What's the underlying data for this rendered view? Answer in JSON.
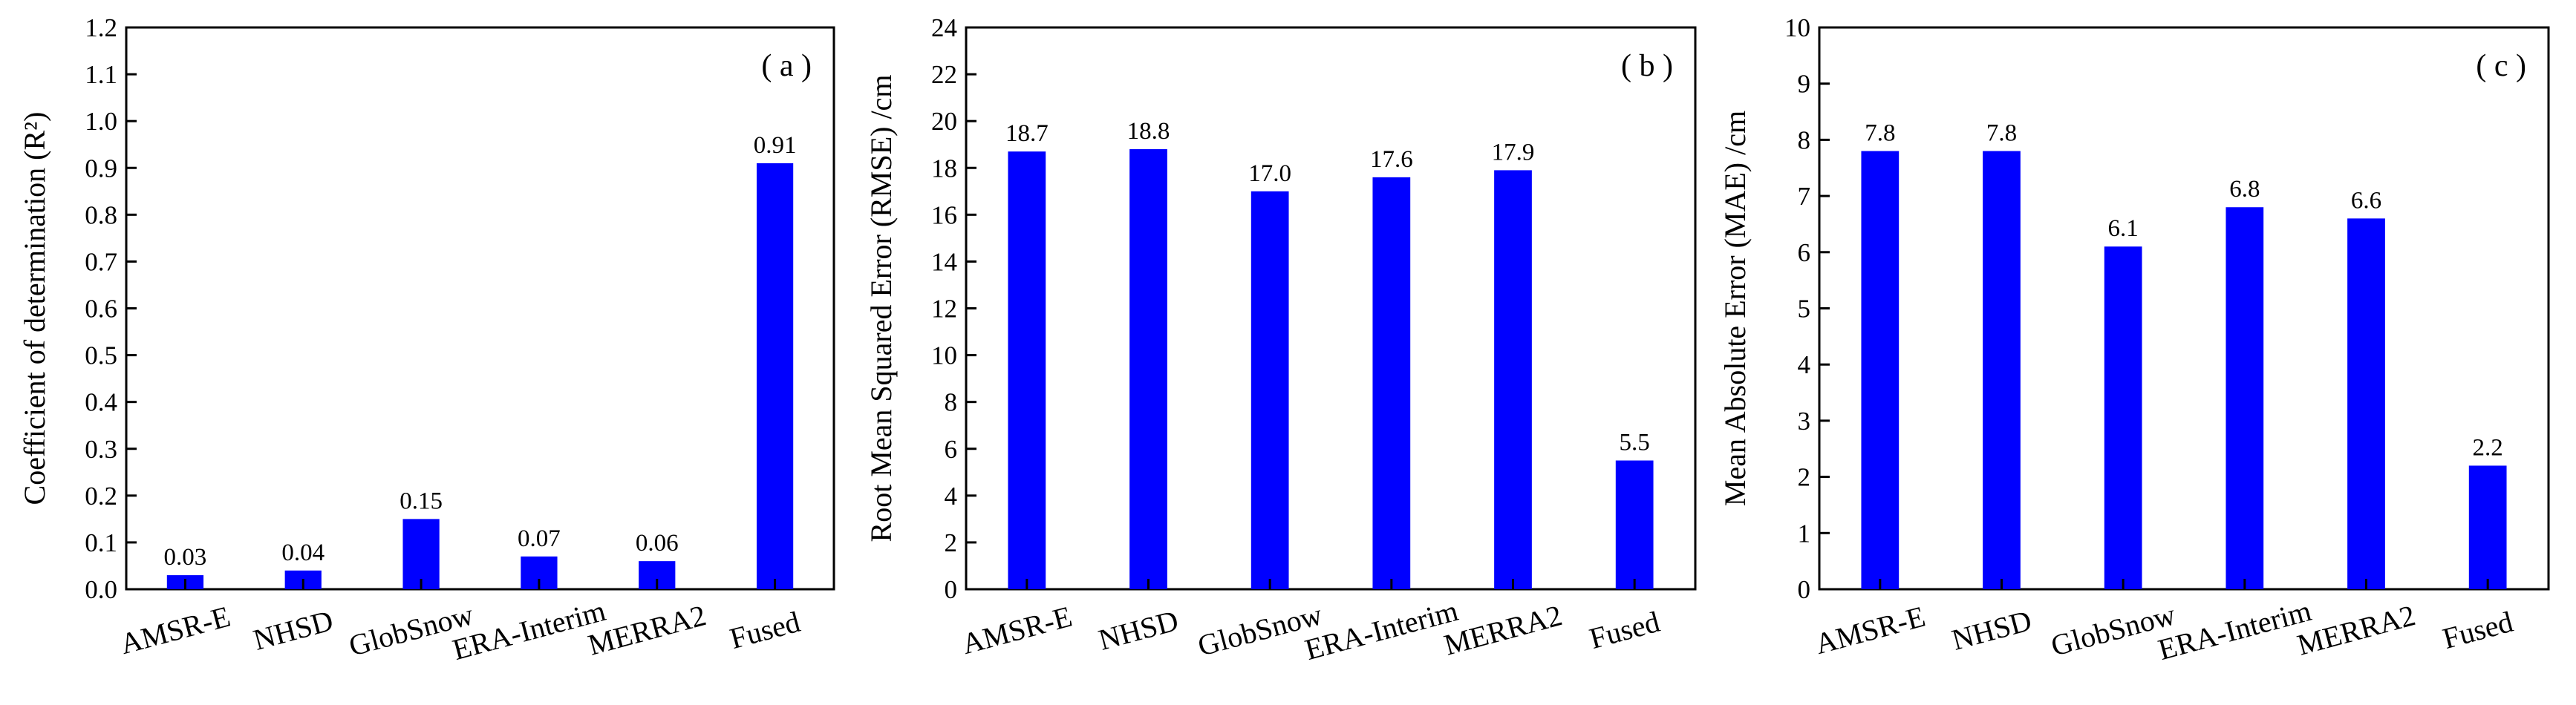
{
  "colors": {
    "bar": "#0000ff",
    "axis": "#000000"
  },
  "chart_data": [
    {
      "type": "bar",
      "panel_label": "( a )",
      "ylabel": "Coefficient of determination (R²)",
      "categories": [
        "AMSR-E",
        "NHSD",
        "GlobSnow",
        "ERA-Interim",
        "MERRA2",
        "Fused"
      ],
      "values": [
        0.03,
        0.04,
        0.15,
        0.07,
        0.06,
        0.91
      ],
      "value_labels": [
        "0.03",
        "0.04",
        "0.15",
        "0.07",
        "0.06",
        "0.91"
      ],
      "ylim": [
        0,
        1.2
      ],
      "yticks": [
        "0.0",
        "0.1",
        "0.2",
        "0.3",
        "0.4",
        "0.5",
        "0.6",
        "0.7",
        "0.8",
        "0.9",
        "1.0",
        "1.1",
        "1.2"
      ],
      "grid": false
    },
    {
      "type": "bar",
      "panel_label": "( b )",
      "ylabel": "Root Mean Squared Error (RMSE) /cm",
      "categories": [
        "AMSR-E",
        "NHSD",
        "GlobSnow",
        "ERA-Interim",
        "MERRA2",
        "Fused"
      ],
      "values": [
        18.7,
        18.8,
        17.0,
        17.6,
        17.9,
        5.5
      ],
      "value_labels": [
        "18.7",
        "18.8",
        "17.0",
        "17.6",
        "17.9",
        "5.5"
      ],
      "ylim": [
        0,
        24
      ],
      "yticks": [
        "0",
        "2",
        "4",
        "6",
        "8",
        "10",
        "12",
        "14",
        "16",
        "18",
        "20",
        "22",
        "24"
      ],
      "grid": false
    },
    {
      "type": "bar",
      "panel_label": "( c )",
      "ylabel": "Mean Absolute Error (MAE) /cm",
      "categories": [
        "AMSR-E",
        "NHSD",
        "GlobSnow",
        "ERA-Interim",
        "MERRA2",
        "Fused"
      ],
      "values": [
        7.8,
        7.8,
        6.1,
        6.8,
        6.6,
        2.2
      ],
      "value_labels": [
        "7.8",
        "7.8",
        "6.1",
        "6.8",
        "6.6",
        "2.2"
      ],
      "ylim": [
        0,
        10
      ],
      "yticks": [
        "0",
        "1",
        "2",
        "3",
        "4",
        "5",
        "6",
        "7",
        "8",
        "9",
        "10"
      ],
      "grid": false
    }
  ]
}
